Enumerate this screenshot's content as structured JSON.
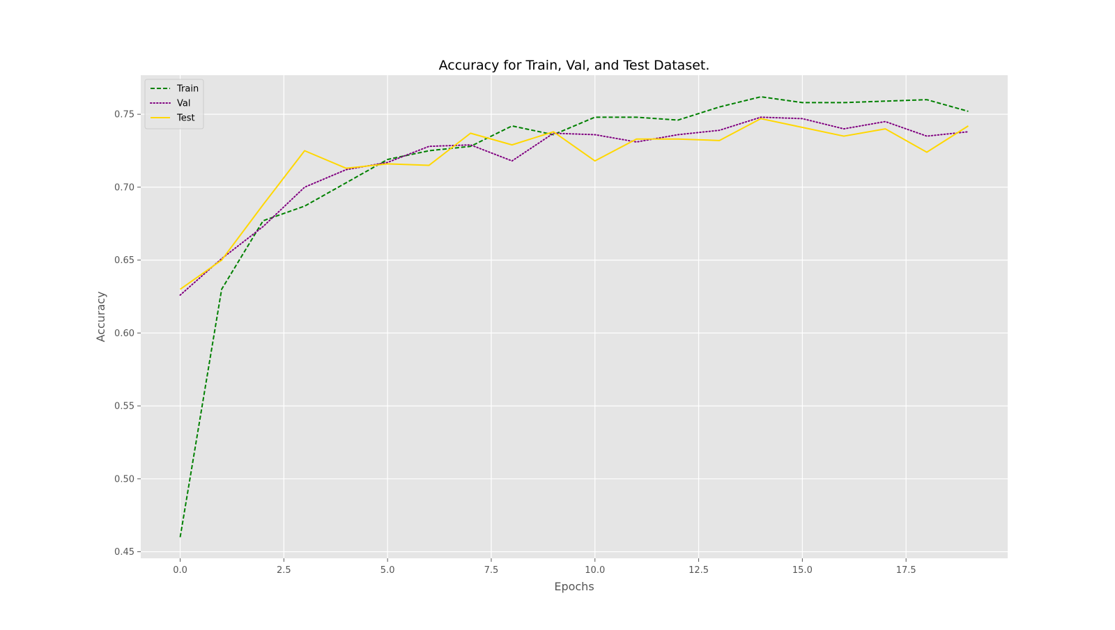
{
  "chart_data": {
    "type": "line",
    "title": "Accuracy for Train, Val, and Test Dataset.",
    "xlabel": "Epochs",
    "ylabel": "Accuracy",
    "x": [
      0,
      1,
      2,
      3,
      4,
      5,
      6,
      7,
      8,
      9,
      10,
      11,
      12,
      13,
      14,
      15,
      16,
      17,
      18,
      19
    ],
    "xlim": [
      -0.95,
      19.95
    ],
    "ylim": [
      0.4455,
      0.7768
    ],
    "xticks": [
      0.0,
      2.5,
      5.0,
      7.5,
      10.0,
      12.5,
      15.0,
      17.5
    ],
    "xtick_labels": [
      "0.0",
      "2.5",
      "5.0",
      "7.5",
      "10.0",
      "12.5",
      "15.0",
      "17.5"
    ],
    "yticks": [
      0.45,
      0.5,
      0.55,
      0.6,
      0.65,
      0.7,
      0.75
    ],
    "ytick_labels": [
      "0.45",
      "0.50",
      "0.55",
      "0.60",
      "0.65",
      "0.70",
      "0.75"
    ],
    "grid": true,
    "legend_position": "top-left",
    "series": [
      {
        "name": "Train",
        "color": "#008000",
        "style": "dashed",
        "values": [
          0.46,
          0.63,
          0.677,
          0.687,
          0.703,
          0.719,
          0.725,
          0.728,
          0.742,
          0.736,
          0.748,
          0.748,
          0.746,
          0.755,
          0.762,
          0.758,
          0.758,
          0.759,
          0.76,
          0.752
        ]
      },
      {
        "name": "Val",
        "color": "#800080",
        "style": "dotted",
        "values": [
          0.626,
          0.651,
          0.673,
          0.7,
          0.712,
          0.717,
          0.728,
          0.729,
          0.718,
          0.737,
          0.736,
          0.731,
          0.736,
          0.739,
          0.748,
          0.747,
          0.74,
          0.745,
          0.735,
          0.738
        ]
      },
      {
        "name": "Test",
        "color": "#FFD700",
        "style": "solid",
        "values": [
          0.63,
          0.65,
          0.688,
          0.725,
          0.713,
          0.716,
          0.715,
          0.737,
          0.729,
          0.738,
          0.718,
          0.733,
          0.733,
          0.732,
          0.747,
          0.741,
          0.735,
          0.74,
          0.724,
          0.742
        ]
      }
    ]
  }
}
